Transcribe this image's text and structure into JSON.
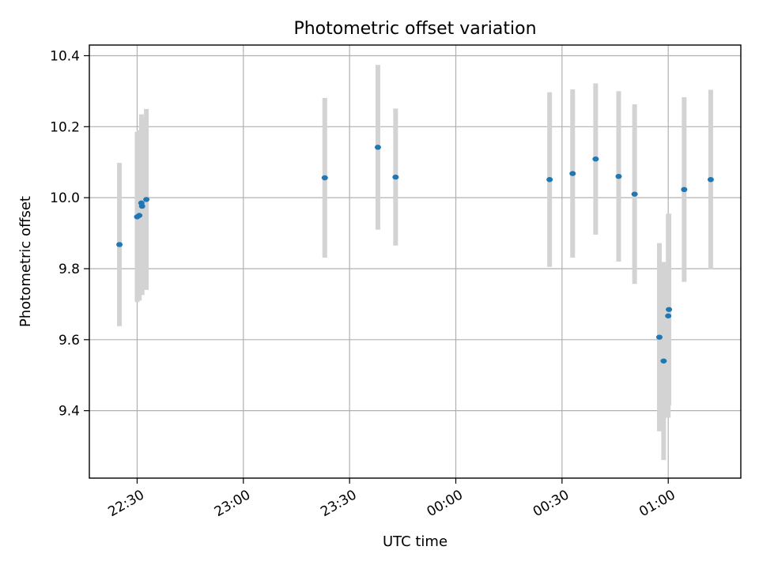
{
  "chart_data": {
    "type": "scatter",
    "title": "Photometric offset variation",
    "xlabel": "UTC time",
    "ylabel": "Photometric offset",
    "x_ticks": [
      {
        "label": "22:30",
        "minutes": 0
      },
      {
        "label": "23:00",
        "minutes": 30
      },
      {
        "label": "23:30",
        "minutes": 60
      },
      {
        "label": "00:00",
        "minutes": 90
      },
      {
        "label": "00:30",
        "minutes": 120
      },
      {
        "label": "01:00",
        "minutes": 150
      }
    ],
    "y_ticks": [
      9.4,
      9.6,
      9.8,
      10.0,
      10.2,
      10.4
    ],
    "xlim": [
      -13.5,
      170.5
    ],
    "ylim": [
      9.21,
      10.43
    ],
    "grid": true,
    "marker_color": "#1f77b4",
    "errorbar_color": "#d3d3d3",
    "series": [
      {
        "points": [
          {
            "x": -5.0,
            "y": 9.868,
            "yerr": 0.23
          },
          {
            "x": 0.0,
            "y": 9.946,
            "yerr": 0.24
          },
          {
            "x": 0.6,
            "y": 9.95,
            "yerr": 0.24
          },
          {
            "x": 1.2,
            "y": 9.985,
            "yerr": 0.25
          },
          {
            "x": 1.4,
            "y": 9.976,
            "yerr": 0.25
          },
          {
            "x": 2.6,
            "y": 9.995,
            "yerr": 0.255
          },
          {
            "x": 53.0,
            "y": 10.056,
            "yerr": 0.225
          },
          {
            "x": 68.0,
            "y": 10.142,
            "yerr": 0.232
          },
          {
            "x": 73.0,
            "y": 10.058,
            "yerr": 0.193
          },
          {
            "x": 116.5,
            "y": 10.051,
            "yerr": 0.246
          },
          {
            "x": 123.0,
            "y": 10.068,
            "yerr": 0.237
          },
          {
            "x": 129.5,
            "y": 10.109,
            "yerr": 0.213
          },
          {
            "x": 136.0,
            "y": 10.06,
            "yerr": 0.24
          },
          {
            "x": 140.5,
            "y": 10.01,
            "yerr": 0.253
          },
          {
            "x": 147.5,
            "y": 9.607,
            "yerr": 0.265
          },
          {
            "x": 148.7,
            "y": 9.54,
            "yerr": 0.279
          },
          {
            "x": 150.0,
            "y": 9.667,
            "yerr": 0.287
          },
          {
            "x": 150.2,
            "y": 9.685,
            "yerr": 0.27
          },
          {
            "x": 154.5,
            "y": 10.023,
            "yerr": 0.26
          },
          {
            "x": 162.0,
            "y": 10.051,
            "yerr": 0.253
          }
        ]
      }
    ]
  }
}
